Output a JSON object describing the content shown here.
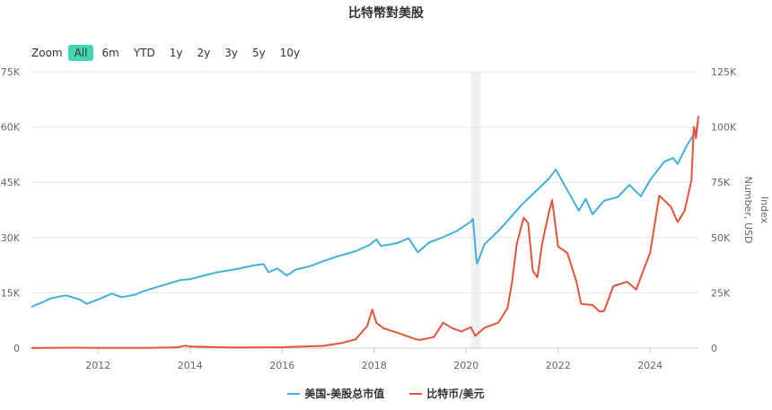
{
  "title": "比特幣對美股",
  "colors": {
    "stocks": "#3fb0d8",
    "btc": "#e4533a",
    "grid": "#e6e6e6",
    "axis": "#cccccc",
    "tick": "#666666",
    "active_zoom": "#41d6b1"
  },
  "zoom": {
    "label": "Zoom",
    "buttons": [
      "All",
      "6m",
      "YTD",
      "1y",
      "2y",
      "3y",
      "5y",
      "10y"
    ],
    "active": "All"
  },
  "legend": [
    "美国-美股总市值",
    "比特币/美元"
  ],
  "chart_data": {
    "type": "line",
    "title": "比特幣對美股",
    "x_range": [
      2010.55,
      2025.05
    ],
    "x_ticks": [
      "2012",
      "2014",
      "2016",
      "2018",
      "2020",
      "2022",
      "2024"
    ],
    "y_left": {
      "label": "",
      "range": [
        0,
        75000
      ],
      "ticks": [
        "0",
        "15K",
        "30K",
        "45K",
        "60K",
        "75K"
      ]
    },
    "y_right": {
      "label": "Index\nNumber, USD",
      "range": [
        0,
        125000
      ],
      "ticks": [
        "0",
        "25K",
        "50K",
        "75K",
        "100K",
        "125K"
      ]
    },
    "highlight_band": [
      2020.1,
      2020.32
    ],
    "grid": true,
    "legend_position": "bottom",
    "series": [
      {
        "name": "美国-美股总市值",
        "axis": "left",
        "points": [
          [
            2010.55,
            11200
          ],
          [
            2010.8,
            12500
          ],
          [
            2011.0,
            13600
          ],
          [
            2011.3,
            14300
          ],
          [
            2011.6,
            13200
          ],
          [
            2011.75,
            12000
          ],
          [
            2012.0,
            13200
          ],
          [
            2012.3,
            14800
          ],
          [
            2012.5,
            13800
          ],
          [
            2012.8,
            14500
          ],
          [
            2013.0,
            15500
          ],
          [
            2013.4,
            17000
          ],
          [
            2013.8,
            18500
          ],
          [
            2014.0,
            18700
          ],
          [
            2014.3,
            19700
          ],
          [
            2014.6,
            20600
          ],
          [
            2014.9,
            21200
          ],
          [
            2015.0,
            21400
          ],
          [
            2015.4,
            22500
          ],
          [
            2015.6,
            22800
          ],
          [
            2015.7,
            20600
          ],
          [
            2015.9,
            21600
          ],
          [
            2016.1,
            19700
          ],
          [
            2016.3,
            21300
          ],
          [
            2016.6,
            22200
          ],
          [
            2016.9,
            23600
          ],
          [
            2017.2,
            24900
          ],
          [
            2017.6,
            26300
          ],
          [
            2017.9,
            28000
          ],
          [
            2018.05,
            29500
          ],
          [
            2018.15,
            27700
          ],
          [
            2018.5,
            28500
          ],
          [
            2018.75,
            29800
          ],
          [
            2018.95,
            26000
          ],
          [
            2019.2,
            28700
          ],
          [
            2019.5,
            30100
          ],
          [
            2019.8,
            31800
          ],
          [
            2020.1,
            34300
          ],
          [
            2020.15,
            35000
          ],
          [
            2020.22,
            24500
          ],
          [
            2020.24,
            22900
          ],
          [
            2020.4,
            28200
          ],
          [
            2020.7,
            31800
          ],
          [
            2020.9,
            34500
          ],
          [
            2021.2,
            38800
          ],
          [
            2021.5,
            42400
          ],
          [
            2021.8,
            46000
          ],
          [
            2021.95,
            48500
          ],
          [
            2022.15,
            44000
          ],
          [
            2022.45,
            37300
          ],
          [
            2022.6,
            40500
          ],
          [
            2022.75,
            36300
          ],
          [
            2023.0,
            40000
          ],
          [
            2023.3,
            41000
          ],
          [
            2023.55,
            44300
          ],
          [
            2023.8,
            41200
          ],
          [
            2024.0,
            45600
          ],
          [
            2024.3,
            50500
          ],
          [
            2024.5,
            51600
          ],
          [
            2024.6,
            50000
          ],
          [
            2024.8,
            55000
          ],
          [
            2025.0,
            59000
          ],
          [
            2025.05,
            61500
          ]
        ]
      },
      {
        "name": "比特币/美元",
        "axis": "right",
        "points": [
          [
            2010.55,
            50
          ],
          [
            2011.5,
            200
          ],
          [
            2012.0,
            100
          ],
          [
            2013.0,
            100
          ],
          [
            2013.7,
            300
          ],
          [
            2013.9,
            1100
          ],
          [
            2014.0,
            700
          ],
          [
            2015.0,
            250
          ],
          [
            2016.0,
            400
          ],
          [
            2016.9,
            1000
          ],
          [
            2017.3,
            2300
          ],
          [
            2017.6,
            4000
          ],
          [
            2017.85,
            10000
          ],
          [
            2017.96,
            17500
          ],
          [
            2018.05,
            11500
          ],
          [
            2018.2,
            9000
          ],
          [
            2018.5,
            7000
          ],
          [
            2018.9,
            4000
          ],
          [
            2019.0,
            3700
          ],
          [
            2019.3,
            5000
          ],
          [
            2019.5,
            11500
          ],
          [
            2019.7,
            9000
          ],
          [
            2019.9,
            7500
          ],
          [
            2020.1,
            9500
          ],
          [
            2020.2,
            5500
          ],
          [
            2020.4,
            9200
          ],
          [
            2020.7,
            11500
          ],
          [
            2020.9,
            18000
          ],
          [
            2021.0,
            30000
          ],
          [
            2021.1,
            47000
          ],
          [
            2021.25,
            59000
          ],
          [
            2021.35,
            56500
          ],
          [
            2021.45,
            35000
          ],
          [
            2021.55,
            32000
          ],
          [
            2021.65,
            47000
          ],
          [
            2021.8,
            61500
          ],
          [
            2021.87,
            67000
          ],
          [
            2022.0,
            46000
          ],
          [
            2022.2,
            43000
          ],
          [
            2022.4,
            30000
          ],
          [
            2022.5,
            20000
          ],
          [
            2022.75,
            19500
          ],
          [
            2022.9,
            16500
          ],
          [
            2023.0,
            16800
          ],
          [
            2023.2,
            28000
          ],
          [
            2023.5,
            30000
          ],
          [
            2023.7,
            26500
          ],
          [
            2023.85,
            35000
          ],
          [
            2024.0,
            43000
          ],
          [
            2024.2,
            69000
          ],
          [
            2024.45,
            64000
          ],
          [
            2024.6,
            57000
          ],
          [
            2024.75,
            62000
          ],
          [
            2024.9,
            76000
          ],
          [
            2024.95,
            100000
          ],
          [
            2025.0,
            95000
          ],
          [
            2025.05,
            105000
          ]
        ]
      }
    ]
  }
}
